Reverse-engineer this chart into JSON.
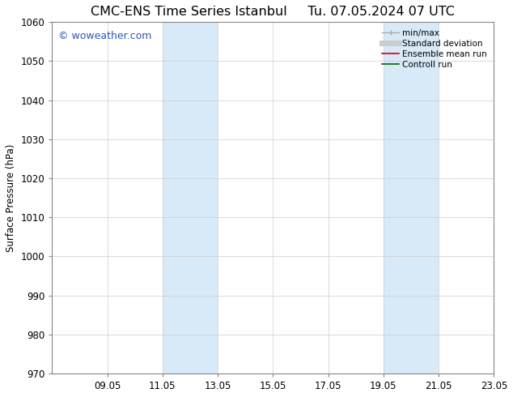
{
  "title_left": "CMC-ENS Time Series Istanbul",
  "title_right": "Tu. 07.05.2024 07 UTC",
  "ylabel": "Surface Pressure (hPa)",
  "ylim": [
    970,
    1060
  ],
  "yticks": [
    970,
    980,
    990,
    1000,
    1010,
    1020,
    1030,
    1040,
    1050,
    1060
  ],
  "xtick_labels": [
    "09.05",
    "11.05",
    "13.05",
    "15.05",
    "17.05",
    "19.05",
    "21.05",
    "23.05"
  ],
  "xtick_positions": [
    2,
    4,
    6,
    8,
    10,
    12,
    14,
    16
  ],
  "xlim": [
    0,
    16
  ],
  "shaded_bands": [
    {
      "x_start": 4,
      "x_end": 6,
      "color": "#d8eaf8"
    },
    {
      "x_start": 12,
      "x_end": 14,
      "color": "#d8eaf8"
    }
  ],
  "watermark_text": "© woweather.com",
  "watermark_color": "#3355bb",
  "bg_color": "#ffffff",
  "plot_bg_color": "#ffffff",
  "grid_color": "#cccccc",
  "spine_color": "#888888",
  "title_fontsize": 11.5,
  "tick_fontsize": 8.5,
  "legend_fontsize": 7.5,
  "ylabel_fontsize": 8.5,
  "watermark_fontsize": 9
}
